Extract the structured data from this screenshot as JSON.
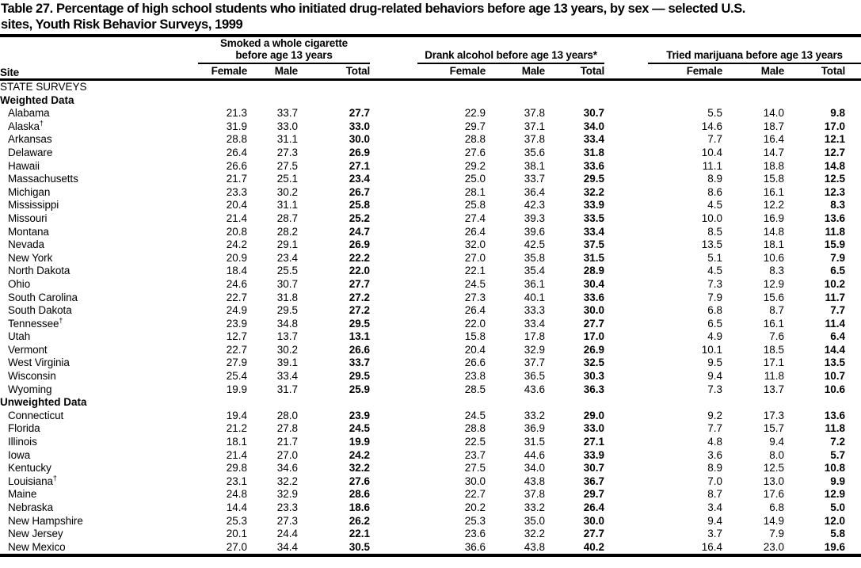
{
  "title": {
    "line1": "Table 27. Percentage of high school students who initiated drug-related behaviors before age 13 years, by sex — selected U.S.",
    "line2": "sites, Youth Risk Behavior Surveys, 1999"
  },
  "table": {
    "site_column_header": "Site",
    "column_groups": [
      {
        "label_line1": "Smoked a whole cigarette",
        "label_line2": "before age 13 years",
        "columns": [
          "Female",
          "Male",
          "Total"
        ]
      },
      {
        "label_line1": "Drank alcohol before age 13 years*",
        "label_line2": "",
        "columns": [
          "Female",
          "Male",
          "Total"
        ]
      },
      {
        "label_line1": "Tried marijuana before age 13 years",
        "label_line2": "",
        "columns": [
          "Female",
          "Male",
          "Total"
        ]
      }
    ],
    "sections": [
      {
        "label": "STATE SURVEYS",
        "style": "caps",
        "rows": []
      },
      {
        "label": "Weighted Data",
        "style": "bold",
        "rows": [
          {
            "site": "Alabama",
            "cigarette": [
              "21.3",
              "33.7",
              "27.7"
            ],
            "alcohol": [
              "22.9",
              "37.8",
              "30.7"
            ],
            "marijuana": [
              "5.5",
              "14.0",
              "9.8"
            ]
          },
          {
            "site": "Alaska†",
            "cigarette": [
              "31.9",
              "33.0",
              "33.0"
            ],
            "alcohol": [
              "29.7",
              "37.1",
              "34.0"
            ],
            "marijuana": [
              "14.6",
              "18.7",
              "17.0"
            ]
          },
          {
            "site": "Arkansas",
            "cigarette": [
              "28.8",
              "31.1",
              "30.0"
            ],
            "alcohol": [
              "28.8",
              "37.8",
              "33.4"
            ],
            "marijuana": [
              "7.7",
              "16.4",
              "12.1"
            ]
          },
          {
            "site": "Delaware",
            "cigarette": [
              "26.4",
              "27.3",
              "26.9"
            ],
            "alcohol": [
              "27.6",
              "35.6",
              "31.8"
            ],
            "marijuana": [
              "10.4",
              "14.7",
              "12.7"
            ]
          },
          {
            "site": "Hawaii",
            "cigarette": [
              "26.6",
              "27.5",
              "27.1"
            ],
            "alcohol": [
              "29.2",
              "38.1",
              "33.6"
            ],
            "marijuana": [
              "11.1",
              "18.8",
              "14.8"
            ]
          },
          {
            "site": "Massachusetts",
            "cigarette": [
              "21.7",
              "25.1",
              "23.4"
            ],
            "alcohol": [
              "25.0",
              "33.7",
              "29.5"
            ],
            "marijuana": [
              "8.9",
              "15.8",
              "12.5"
            ]
          },
          {
            "site": "Michigan",
            "cigarette": [
              "23.3",
              "30.2",
              "26.7"
            ],
            "alcohol": [
              "28.1",
              "36.4",
              "32.2"
            ],
            "marijuana": [
              "8.6",
              "16.1",
              "12.3"
            ]
          },
          {
            "site": "Mississippi",
            "cigarette": [
              "20.4",
              "31.1",
              "25.8"
            ],
            "alcohol": [
              "25.8",
              "42.3",
              "33.9"
            ],
            "marijuana": [
              "4.5",
              "12.2",
              "8.3"
            ]
          },
          {
            "site": "Missouri",
            "cigarette": [
              "21.4",
              "28.7",
              "25.2"
            ],
            "alcohol": [
              "27.4",
              "39.3",
              "33.5"
            ],
            "marijuana": [
              "10.0",
              "16.9",
              "13.6"
            ]
          },
          {
            "site": "Montana",
            "cigarette": [
              "20.8",
              "28.2",
              "24.7"
            ],
            "alcohol": [
              "26.4",
              "39.6",
              "33.4"
            ],
            "marijuana": [
              "8.5",
              "14.8",
              "11.8"
            ]
          },
          {
            "site": "Nevada",
            "cigarette": [
              "24.2",
              "29.1",
              "26.9"
            ],
            "alcohol": [
              "32.0",
              "42.5",
              "37.5"
            ],
            "marijuana": [
              "13.5",
              "18.1",
              "15.9"
            ]
          },
          {
            "site": "New York",
            "cigarette": [
              "20.9",
              "23.4",
              "22.2"
            ],
            "alcohol": [
              "27.0",
              "35.8",
              "31.5"
            ],
            "marijuana": [
              "5.1",
              "10.6",
              "7.9"
            ]
          },
          {
            "site": "North Dakota",
            "cigarette": [
              "18.4",
              "25.5",
              "22.0"
            ],
            "alcohol": [
              "22.1",
              "35.4",
              "28.9"
            ],
            "marijuana": [
              "4.5",
              "8.3",
              "6.5"
            ]
          },
          {
            "site": "Ohio",
            "cigarette": [
              "24.6",
              "30.7",
              "27.7"
            ],
            "alcohol": [
              "24.5",
              "36.1",
              "30.4"
            ],
            "marijuana": [
              "7.3",
              "12.9",
              "10.2"
            ]
          },
          {
            "site": "South Carolina",
            "cigarette": [
              "22.7",
              "31.8",
              "27.2"
            ],
            "alcohol": [
              "27.3",
              "40.1",
              "33.6"
            ],
            "marijuana": [
              "7.9",
              "15.6",
              "11.7"
            ]
          },
          {
            "site": "South Dakota",
            "cigarette": [
              "24.9",
              "29.5",
              "27.2"
            ],
            "alcohol": [
              "26.4",
              "33.3",
              "30.0"
            ],
            "marijuana": [
              "6.8",
              "8.7",
              "7.7"
            ]
          },
          {
            "site": "Tennessee†",
            "cigarette": [
              "23.9",
              "34.8",
              "29.5"
            ],
            "alcohol": [
              "22.0",
              "33.4",
              "27.7"
            ],
            "marijuana": [
              "6.5",
              "16.1",
              "11.4"
            ]
          },
          {
            "site": "Utah",
            "cigarette": [
              "12.7",
              "13.7",
              "13.1"
            ],
            "alcohol": [
              "15.8",
              "17.8",
              "17.0"
            ],
            "marijuana": [
              "4.9",
              "7.6",
              "6.4"
            ]
          },
          {
            "site": "Vermont",
            "cigarette": [
              "22.7",
              "30.2",
              "26.6"
            ],
            "alcohol": [
              "20.4",
              "32.9",
              "26.9"
            ],
            "marijuana": [
              "10.1",
              "18.5",
              "14.4"
            ]
          },
          {
            "site": "West Virginia",
            "cigarette": [
              "27.9",
              "39.1",
              "33.7"
            ],
            "alcohol": [
              "26.6",
              "37.7",
              "32.5"
            ],
            "marijuana": [
              "9.5",
              "17.1",
              "13.5"
            ]
          },
          {
            "site": "Wisconsin",
            "cigarette": [
              "25.4",
              "33.4",
              "29.5"
            ],
            "alcohol": [
              "23.8",
              "36.5",
              "30.3"
            ],
            "marijuana": [
              "9.4",
              "11.8",
              "10.7"
            ]
          },
          {
            "site": "Wyoming",
            "cigarette": [
              "19.9",
              "31.7",
              "25.9"
            ],
            "alcohol": [
              "28.5",
              "43.6",
              "36.3"
            ],
            "marijuana": [
              "7.3",
              "13.7",
              "10.6"
            ]
          }
        ]
      },
      {
        "label": "Unweighted Data",
        "style": "bold",
        "rows": [
          {
            "site": "Connecticut",
            "cigarette": [
              "19.4",
              "28.0",
              "23.9"
            ],
            "alcohol": [
              "24.5",
              "33.2",
              "29.0"
            ],
            "marijuana": [
              "9.2",
              "17.3",
              "13.6"
            ]
          },
          {
            "site": "Florida",
            "cigarette": [
              "21.2",
              "27.8",
              "24.5"
            ],
            "alcohol": [
              "28.8",
              "36.9",
              "33.0"
            ],
            "marijuana": [
              "7.7",
              "15.7",
              "11.8"
            ]
          },
          {
            "site": "Illinois",
            "cigarette": [
              "18.1",
              "21.7",
              "19.9"
            ],
            "alcohol": [
              "22.5",
              "31.5",
              "27.1"
            ],
            "marijuana": [
              "4.8",
              "9.4",
              "7.2"
            ]
          },
          {
            "site": "Iowa",
            "cigarette": [
              "21.4",
              "27.0",
              "24.2"
            ],
            "alcohol": [
              "23.7",
              "44.6",
              "33.9"
            ],
            "marijuana": [
              "3.6",
              "8.0",
              "5.7"
            ]
          },
          {
            "site": "Kentucky",
            "cigarette": [
              "29.8",
              "34.6",
              "32.2"
            ],
            "alcohol": [
              "27.5",
              "34.0",
              "30.7"
            ],
            "marijuana": [
              "8.9",
              "12.5",
              "10.8"
            ]
          },
          {
            "site": "Louisiana†",
            "cigarette": [
              "23.1",
              "32.2",
              "27.6"
            ],
            "alcohol": [
              "30.0",
              "43.8",
              "36.7"
            ],
            "marijuana": [
              "7.0",
              "13.0",
              "9.9"
            ]
          },
          {
            "site": "Maine",
            "cigarette": [
              "24.8",
              "32.9",
              "28.6"
            ],
            "alcohol": [
              "22.7",
              "37.8",
              "29.7"
            ],
            "marijuana": [
              "8.7",
              "17.6",
              "12.9"
            ]
          },
          {
            "site": "Nebraska",
            "cigarette": [
              "14.4",
              "23.3",
              "18.6"
            ],
            "alcohol": [
              "20.2",
              "33.2",
              "26.4"
            ],
            "marijuana": [
              "3.4",
              "6.8",
              "5.0"
            ]
          },
          {
            "site": "New Hampshire",
            "cigarette": [
              "25.3",
              "27.3",
              "26.2"
            ],
            "alcohol": [
              "25.3",
              "35.0",
              "30.0"
            ],
            "marijuana": [
              "9.4",
              "14.9",
              "12.0"
            ]
          },
          {
            "site": "New Jersey",
            "cigarette": [
              "20.1",
              "24.4",
              "22.1"
            ],
            "alcohol": [
              "23.6",
              "32.2",
              "27.7"
            ],
            "marijuana": [
              "3.7",
              "7.9",
              "5.8"
            ]
          },
          {
            "site": "New Mexico",
            "cigarette": [
              "27.0",
              "34.4",
              "30.5"
            ],
            "alcohol": [
              "36.6",
              "43.8",
              "40.2"
            ],
            "marijuana": [
              "16.4",
              "23.0",
              "19.6"
            ]
          }
        ]
      }
    ]
  }
}
